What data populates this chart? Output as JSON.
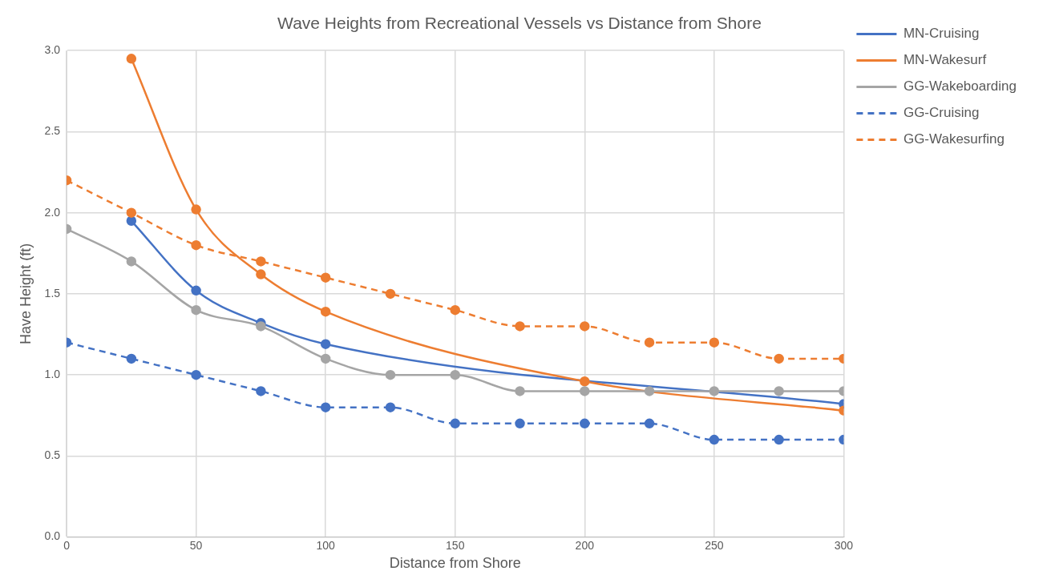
{
  "chart_data": {
    "type": "line",
    "title": "Wave Heights from Recreational Vessels vs Distance from Shore",
    "xlabel": "Distance from Shore",
    "ylabel": "Have Height (ft)",
    "xlim": [
      0,
      300
    ],
    "xticks": [
      0,
      50,
      100,
      150,
      200,
      250,
      300
    ],
    "ylim": [
      0,
      3
    ],
    "yticks": [
      {
        "value": 0,
        "label": "0.0"
      },
      0.5,
      {
        "value": 1,
        "label": "1.0"
      },
      1.5,
      {
        "value": 2,
        "label": "2.0"
      },
      2.5,
      {
        "value": 3,
        "label": "3.0"
      }
    ],
    "grid": true,
    "legend": "top right",
    "marker": "circle",
    "series": [
      {
        "name": "MN-Cruising",
        "color": "#4472c4",
        "line_style": "solid",
        "x": [
          25,
          50,
          75,
          100,
          300
        ],
        "values": [
          1.95,
          1.52,
          1.32,
          1.19,
          0.82
        ]
      },
      {
        "name": "MN-Wakesurf",
        "color": "#ed7d31",
        "line_style": "solid",
        "x": [
          25,
          50,
          75,
          100,
          200,
          300
        ],
        "values": [
          2.95,
          2.02,
          1.62,
          1.39,
          0.96,
          0.78
        ]
      },
      {
        "name": "GG-Wakeboarding",
        "color": "#a5a5a5",
        "line_style": "solid",
        "x": [
          0,
          25,
          50,
          75,
          100,
          125,
          150,
          175,
          200,
          225,
          250,
          275,
          300
        ],
        "values": [
          1.9,
          1.7,
          1.4,
          1.3,
          1.1,
          1.0,
          1.0,
          0.9,
          0.9,
          0.9,
          0.9,
          0.9,
          0.9
        ]
      },
      {
        "name": "GG-Cruising",
        "color": "#4472c4",
        "line_style": "dashed",
        "x": [
          0,
          25,
          50,
          75,
          100,
          125,
          150,
          175,
          200,
          225,
          250,
          275,
          300
        ],
        "values": [
          1.2,
          1.1,
          1.0,
          0.9,
          0.8,
          0.8,
          0.7,
          0.7,
          0.7,
          0.7,
          0.6,
          0.6,
          0.6
        ]
      },
      {
        "name": "GG-Wakesurfing",
        "color": "#ed7d31",
        "line_style": "dashed",
        "x": [
          0,
          25,
          50,
          75,
          100,
          125,
          150,
          175,
          200,
          225,
          250,
          275,
          300
        ],
        "values": [
          2.2,
          2.0,
          1.8,
          1.7,
          1.6,
          1.5,
          1.4,
          1.3,
          1.3,
          1.2,
          1.2,
          1.1,
          1.1
        ]
      }
    ]
  }
}
